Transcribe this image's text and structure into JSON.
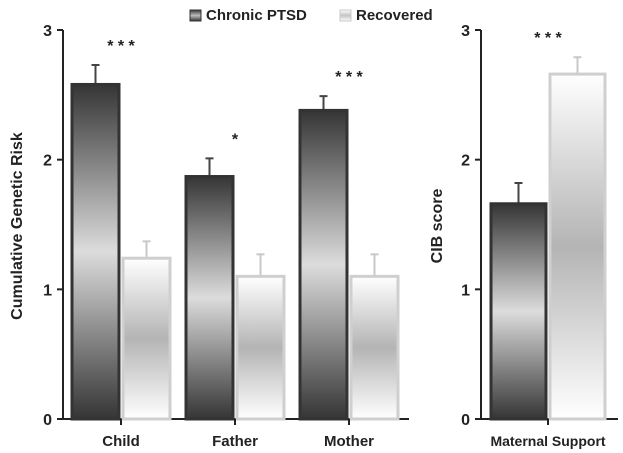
{
  "legend": {
    "items": [
      {
        "label": "Chronic PTSD",
        "swatch": "dark-gradient-swatch"
      },
      {
        "label": "Recovered",
        "swatch": "light-gradient-swatch"
      }
    ],
    "position": "top-center"
  },
  "chart_data": [
    {
      "type": "bar",
      "ylabel": "Cumulative Genetic Risk",
      "xlabel": "",
      "categories": [
        "Child",
        "Father",
        "Mother"
      ],
      "ylim": [
        0,
        3
      ],
      "yticks": [
        "0",
        "1",
        "2",
        "3"
      ],
      "grid": false,
      "series": [
        {
          "name": "Chronic PTSD",
          "values": [
            2.58,
            1.87,
            2.38
          ],
          "errors": [
            0.15,
            0.14,
            0.11
          ]
        },
        {
          "name": "Recovered",
          "values": [
            1.24,
            1.1,
            1.1
          ],
          "errors": [
            0.13,
            0.17,
            0.17
          ]
        }
      ],
      "significance": [
        "* * *",
        "*",
        "* * *"
      ],
      "colors": {
        "dark": "#3a3a3a",
        "light": "#d8d8d8"
      }
    },
    {
      "type": "bar",
      "ylabel": "CIB score",
      "xlabel": "",
      "categories": [
        "Maternal Support"
      ],
      "ylim": [
        0,
        3
      ],
      "yticks": [
        "0",
        "1",
        "2",
        "3"
      ],
      "grid": false,
      "series": [
        {
          "name": "Chronic PTSD",
          "values": [
            1.66
          ],
          "errors": [
            0.16
          ]
        },
        {
          "name": "Recovered",
          "values": [
            2.66
          ],
          "errors": [
            0.13
          ]
        }
      ],
      "significance": [
        "* * *"
      ],
      "colors": {
        "dark": "#3a3a3a",
        "light": "#d8d8d8"
      }
    }
  ]
}
